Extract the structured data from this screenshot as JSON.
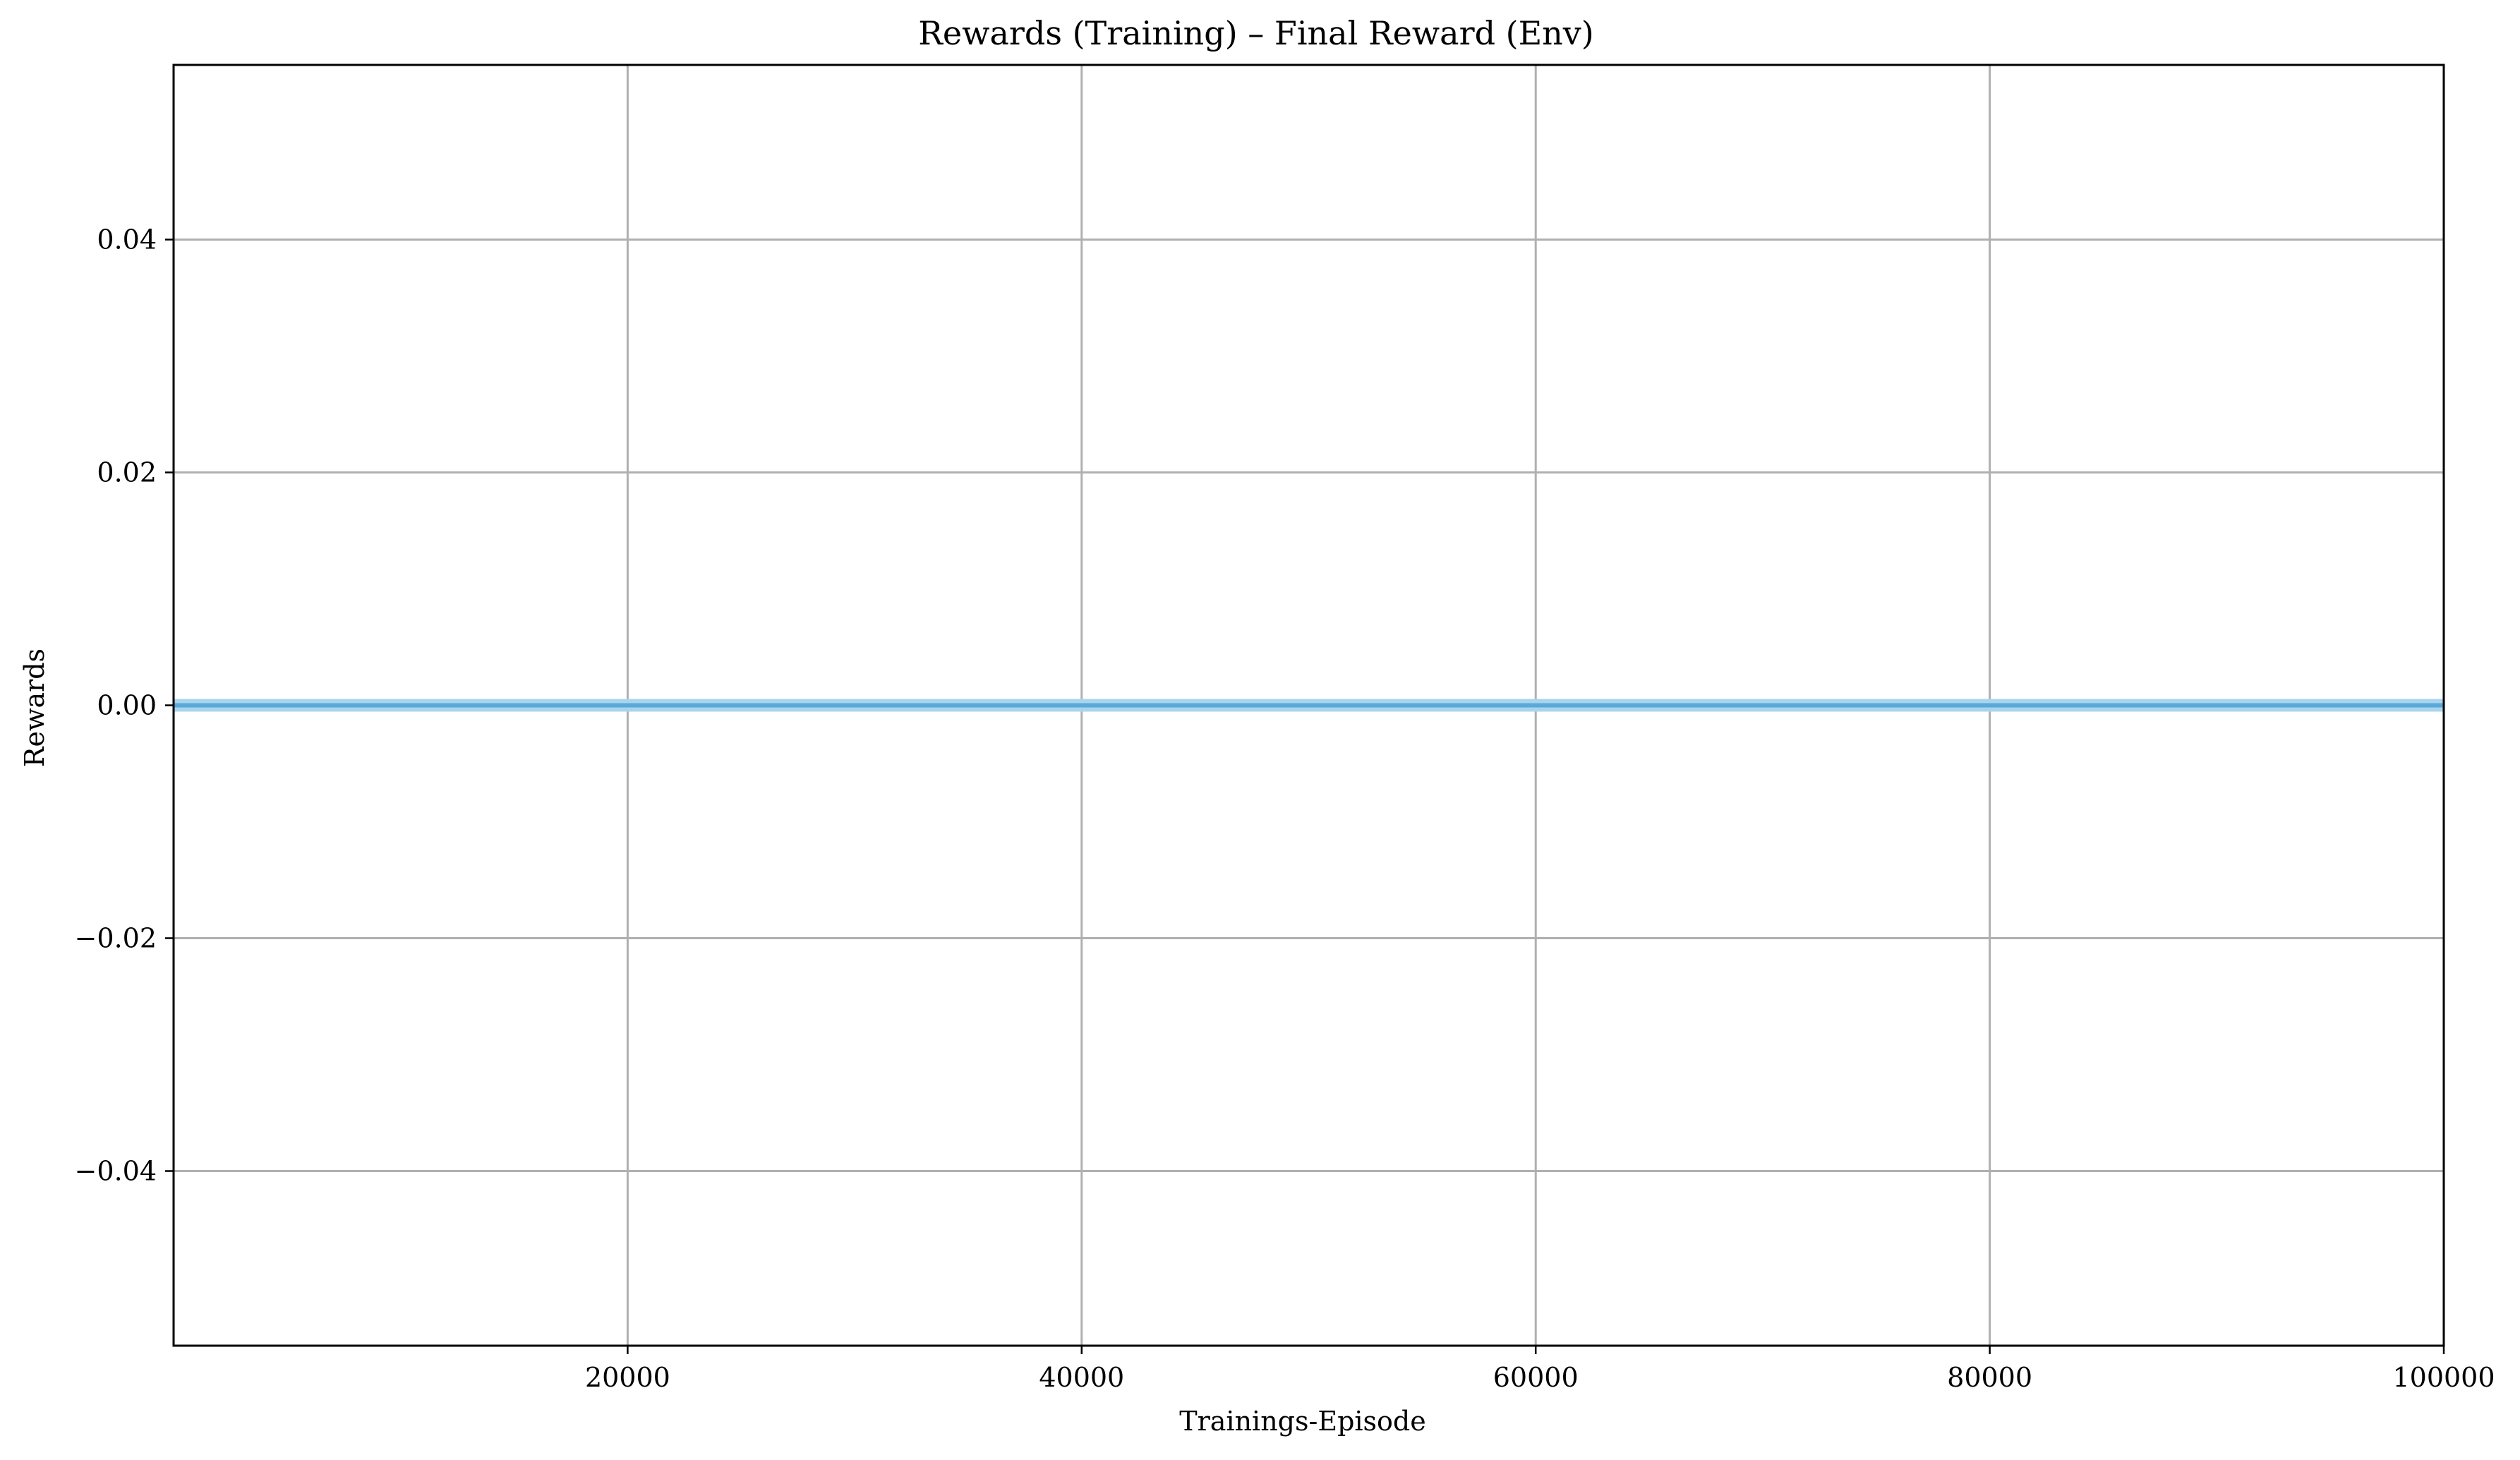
{
  "chart_data": {
    "type": "line",
    "title": "Rewards (Training) – Final Reward (Env)",
    "xlabel": "Trainings-Episode",
    "ylabel": "Rewards",
    "xlim": [
      0,
      100000
    ],
    "ylim": [
      -0.055,
      0.055
    ],
    "x_ticks": [
      20000,
      40000,
      60000,
      80000,
      100000
    ],
    "x_tick_labels": [
      "20000",
      "40000",
      "60000",
      "80000",
      "100000"
    ],
    "y_ticks": [
      -0.04,
      -0.02,
      0.0,
      0.02,
      0.04
    ],
    "y_tick_labels": [
      "−0.04",
      "−0.02",
      "0.00",
      "0.02",
      "0.04"
    ],
    "grid": true,
    "series": [
      {
        "x": [
          0,
          100000
        ],
        "y": [
          0.0,
          0.0
        ],
        "color": "#5aa9d6",
        "band_color": "#a8d4ee"
      }
    ]
  }
}
